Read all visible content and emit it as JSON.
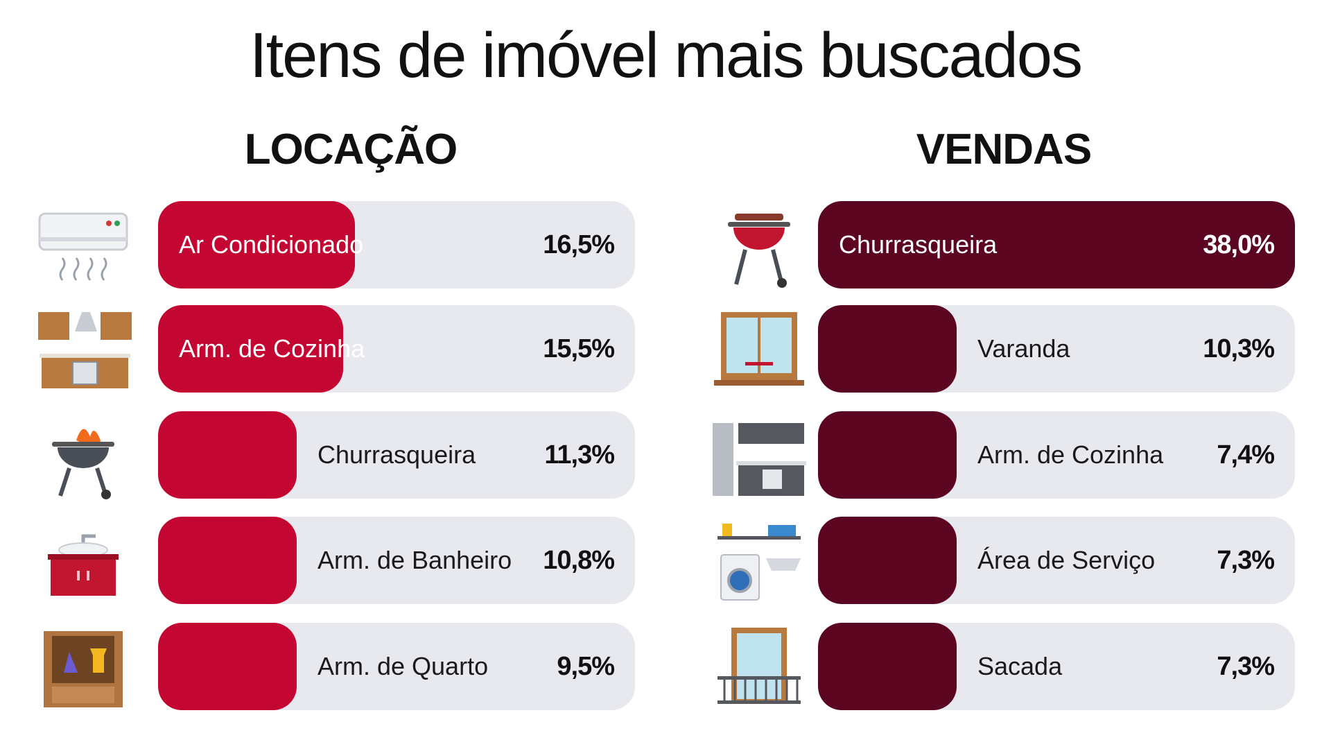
{
  "title": "Itens de imóvel mais buscados",
  "colors": {
    "locacao": "#c30632",
    "vendas": "#5c0520",
    "track": "#e7e9ef"
  },
  "chart_data": [
    {
      "type": "bar",
      "title": "LOCAÇÃO",
      "categories": [
        "Ar Condicionado",
        "Arm. de Cozinha",
        "Churrasqueira",
        "Arm. de Banheiro",
        "Arm. de Quarto"
      ],
      "values": [
        16.5,
        15.5,
        11.3,
        10.8,
        9.5
      ],
      "labels": [
        "16,5%",
        "15,5%",
        "11,3%",
        "10,8%",
        "9,5%"
      ],
      "icons": [
        "air-conditioner-icon",
        "kitchen-cabinets-icon",
        "grill-icon",
        "bathroom-cabinet-icon",
        "wardrobe-icon"
      ],
      "unit": "%"
    },
    {
      "type": "bar",
      "title": "VENDAS",
      "categories": [
        "Churrasqueira",
        "Varanda",
        "Arm. de Cozinha",
        "Área de Serviço",
        "Sacada"
      ],
      "values": [
        38.0,
        10.3,
        7.4,
        7.3,
        7.3
      ],
      "labels": [
        "38,0%",
        "10,3%",
        "7,4%",
        "7,3%",
        "7,3%"
      ],
      "icons": [
        "bbq-grill-icon",
        "veranda-icon",
        "kitchen-icon",
        "laundry-area-icon",
        "balcony-icon"
      ],
      "unit": "%"
    }
  ]
}
